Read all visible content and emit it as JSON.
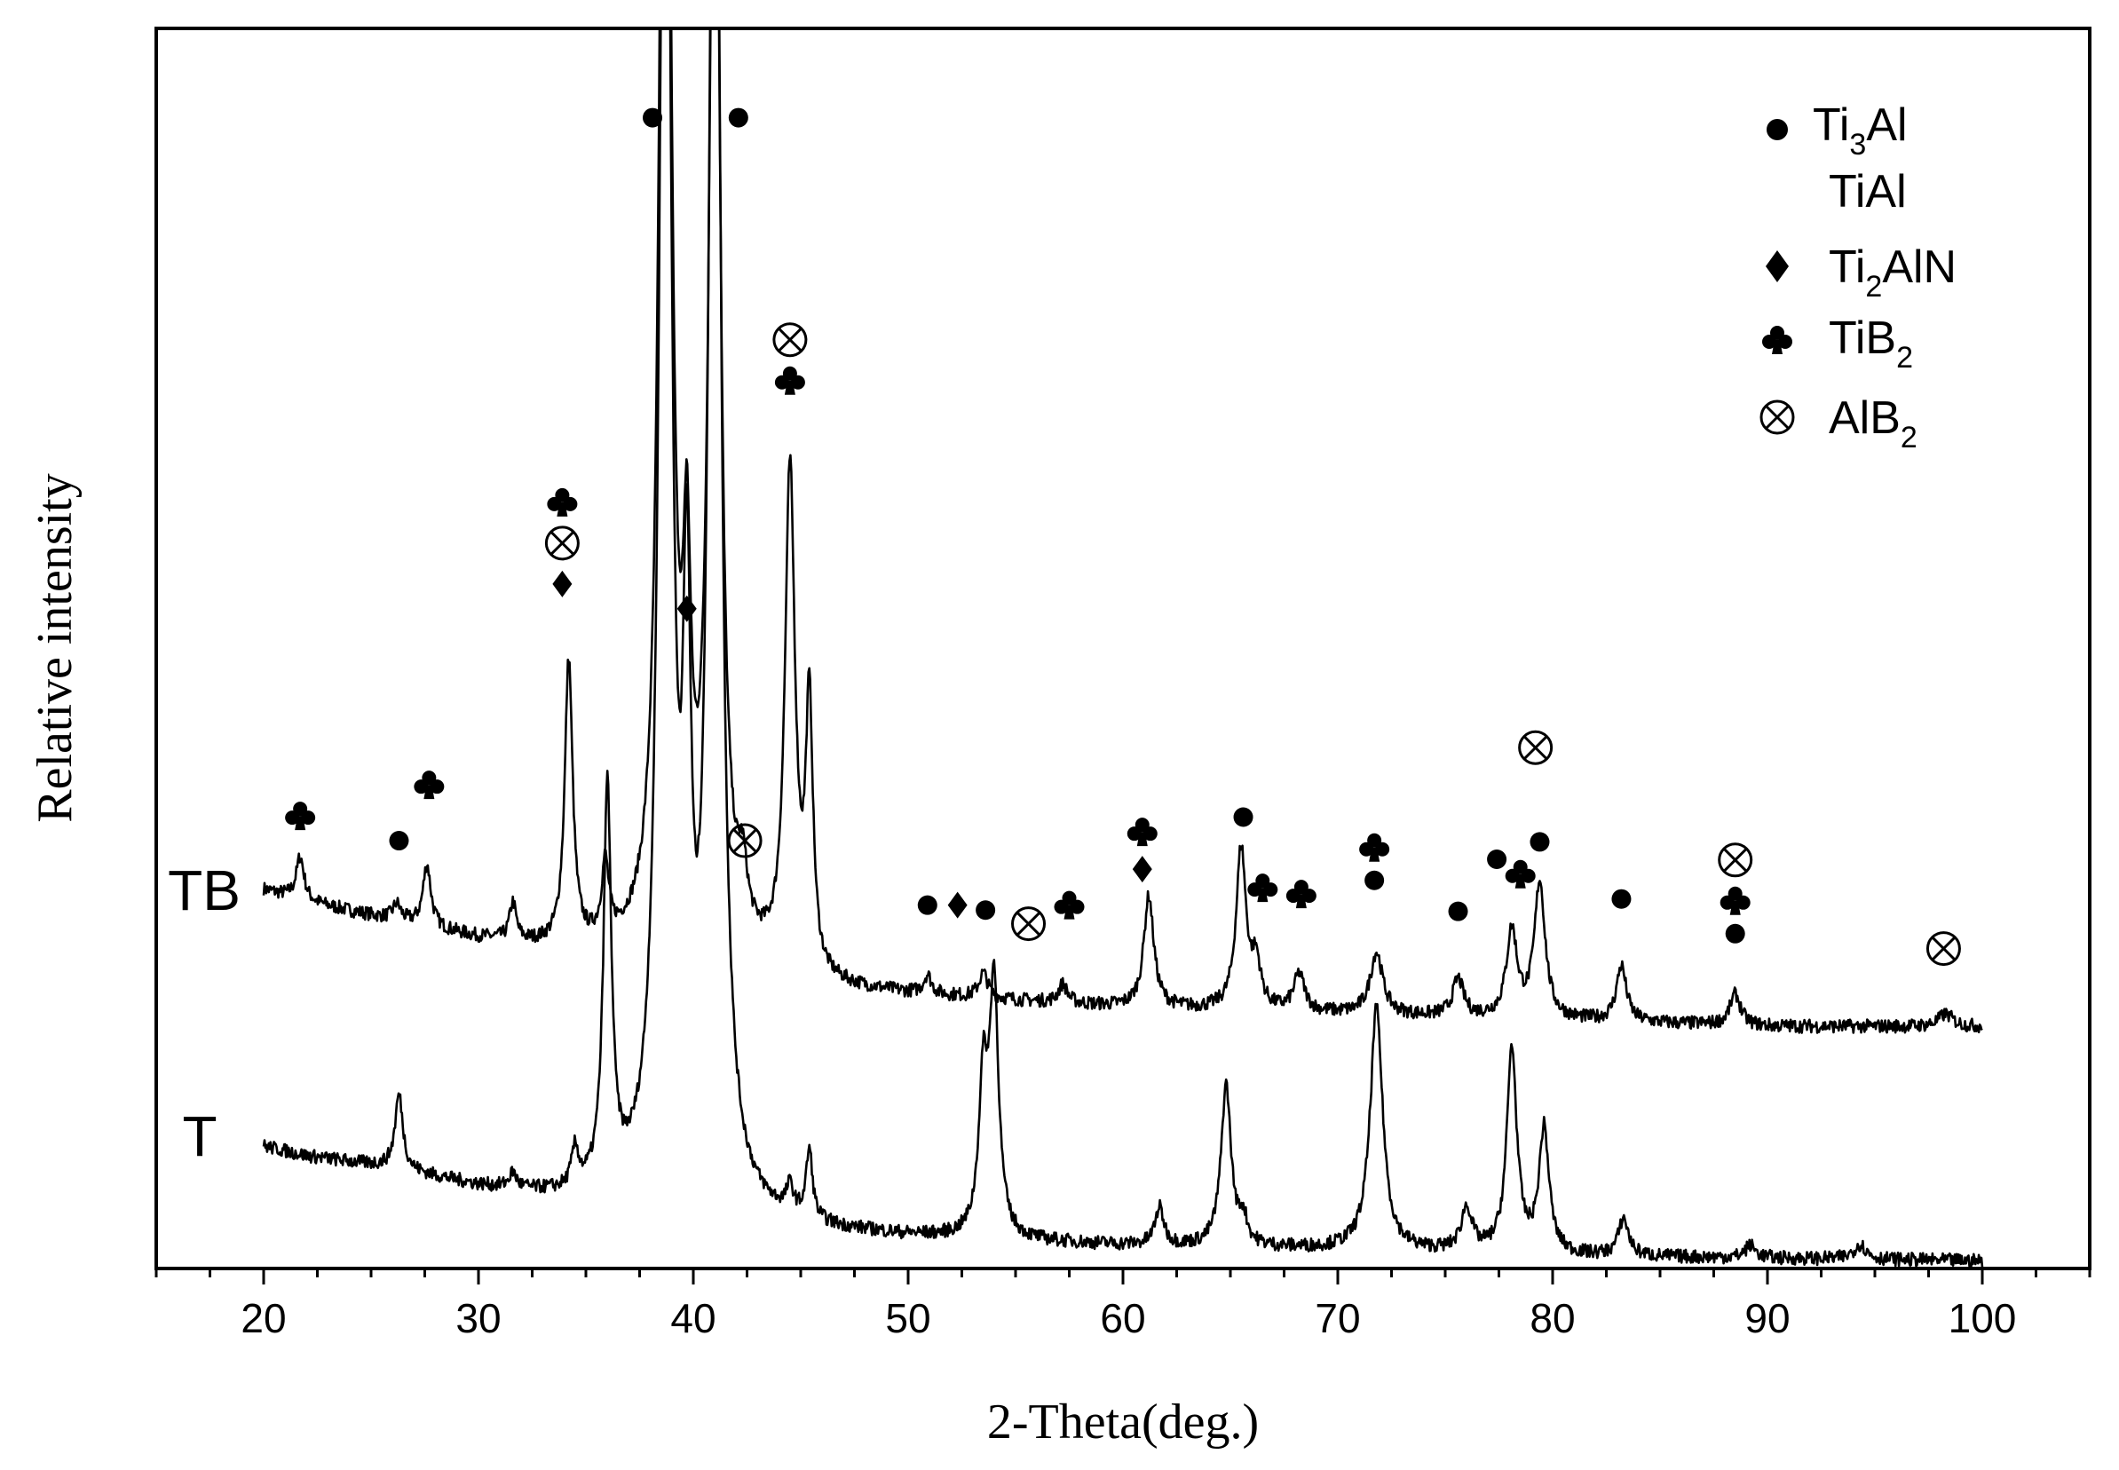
{
  "chart_data": {
    "type": "line",
    "xlabel": "2-Theta(deg.)",
    "ylabel": "Relative intensity",
    "xlim": [
      15,
      105
    ],
    "ylim": [
      0,
      100
    ],
    "x_ticks": [
      20,
      30,
      40,
      50,
      60,
      70,
      80,
      90,
      100
    ],
    "grid": false,
    "legend_position": "top-right",
    "legend": [
      {
        "marker": "dot",
        "label": "Ti",
        "sub": "3",
        "label2": "Al"
      },
      {
        "marker": "none",
        "label": "TiAl",
        "sub": "",
        "label2": ""
      },
      {
        "marker": "diamond",
        "label": "Ti",
        "sub": "2",
        "label2": "AlN"
      },
      {
        "marker": "club",
        "label": "TiB",
        "sub": "2",
        "label2": ""
      },
      {
        "marker": "otimes",
        "label": "AlB",
        "sub": "2",
        "label2": ""
      }
    ],
    "series": [
      {
        "name": "TB",
        "baseline": [
          [
            20,
            30.5
          ],
          [
            22,
            29.5
          ],
          [
            26,
            28
          ],
          [
            30,
            26.5
          ],
          [
            34,
            25.5
          ],
          [
            38,
            25
          ],
          [
            43,
            24
          ],
          [
            46,
            22.5
          ],
          [
            50,
            22
          ],
          [
            60,
            21
          ],
          [
            70,
            20.5
          ],
          [
            80,
            20
          ],
          [
            90,
            19.5
          ],
          [
            100,
            19.5
          ]
        ],
        "peaks": [
          [
            21.7,
            3.5,
            0.22
          ],
          [
            26.2,
            1.3,
            0.22
          ],
          [
            27.6,
            5.0,
            0.22
          ],
          [
            31.6,
            3.0,
            0.18
          ],
          [
            34.2,
            23.0,
            0.22
          ],
          [
            35.9,
            6.0,
            0.2
          ],
          [
            38.7,
            140,
            0.28
          ],
          [
            39.7,
            25.0,
            0.22
          ],
          [
            41.0,
            110,
            0.28
          ],
          [
            42.3,
            4.5,
            0.25
          ],
          [
            44.5,
            40.0,
            0.28
          ],
          [
            45.4,
            21.0,
            0.2
          ],
          [
            50.9,
            1.5,
            0.22
          ],
          [
            53.5,
            2.0,
            0.25
          ],
          [
            57.2,
            1.5,
            0.25
          ],
          [
            61.2,
            9.0,
            0.28
          ],
          [
            65.5,
            13.0,
            0.28
          ],
          [
            66.2,
            3.5,
            0.25
          ],
          [
            68.2,
            3.0,
            0.3
          ],
          [
            71.8,
            5.0,
            0.35
          ],
          [
            75.6,
            3.0,
            0.3
          ],
          [
            78.1,
            7.0,
            0.3
          ],
          [
            79.4,
            11.0,
            0.3
          ],
          [
            83.2,
            4.5,
            0.28
          ],
          [
            88.5,
            2.5,
            0.3
          ],
          [
            98.3,
            1.0,
            0.4
          ]
        ]
      },
      {
        "name": "T",
        "baseline": [
          [
            20,
            9.8
          ],
          [
            22,
            9.0
          ],
          [
            26,
            8.0
          ],
          [
            30,
            6.5
          ],
          [
            34,
            5.5
          ],
          [
            38,
            5.2
          ],
          [
            42,
            4.0
          ],
          [
            46,
            3.0
          ],
          [
            50,
            2.5
          ],
          [
            60,
            1.8
          ],
          [
            70,
            1.5
          ],
          [
            80,
            1.0
          ],
          [
            90,
            0.8
          ],
          [
            100,
            0.6
          ]
        ],
        "peaks": [
          [
            26.3,
            6.0,
            0.22
          ],
          [
            31.6,
            1.2,
            0.2
          ],
          [
            34.5,
            3.0,
            0.2
          ],
          [
            36.0,
            32.0,
            0.22
          ],
          [
            38.7,
            140,
            0.3
          ],
          [
            39.7,
            40.0,
            0.22
          ],
          [
            41.0,
            140,
            0.3
          ],
          [
            44.5,
            2.0,
            0.2
          ],
          [
            45.4,
            5.5,
            0.18
          ],
          [
            53.5,
            12.0,
            0.25
          ],
          [
            54.0,
            20.0,
            0.25
          ],
          [
            61.7,
            3.0,
            0.25
          ],
          [
            64.8,
            13.0,
            0.28
          ],
          [
            65.6,
            2.0,
            0.22
          ],
          [
            71.8,
            19.5,
            0.35
          ],
          [
            76.0,
            3.5,
            0.3
          ],
          [
            78.1,
            16.5,
            0.28
          ],
          [
            79.6,
            10.0,
            0.28
          ],
          [
            83.3,
            3.0,
            0.28
          ],
          [
            89.2,
            1.0,
            0.3
          ],
          [
            94.3,
            1.2,
            0.35
          ]
        ]
      }
    ],
    "annotations": [
      {
        "x": 21.7,
        "y": 36.5,
        "symbols": [
          "club"
        ]
      },
      {
        "x": 26.3,
        "y": 34.5,
        "symbols": [
          "dot"
        ]
      },
      {
        "x": 27.7,
        "y": 39.0,
        "symbols": [
          "club"
        ]
      },
      {
        "x": 33.9,
        "y": 55.2,
        "symbols": [
          "diamond",
          "otimes",
          "club"
        ]
      },
      {
        "x": 38.1,
        "y": 92.8,
        "symbols": [
          "dot"
        ]
      },
      {
        "x": 39.7,
        "y": 53.2,
        "symbols": [
          "diamond"
        ]
      },
      {
        "x": 42.1,
        "y": 92.8,
        "symbols": [
          "dot"
        ]
      },
      {
        "x": 42.4,
        "y": 34.5,
        "symbols": [
          "otimes"
        ]
      },
      {
        "x": 44.5,
        "y": 71.6,
        "symbols": [
          "club",
          "otimes"
        ]
      },
      {
        "x": 50.9,
        "y": 29.3,
        "symbols": [
          "dot"
        ]
      },
      {
        "x": 52.3,
        "y": 29.3,
        "symbols": [
          "diamond"
        ]
      },
      {
        "x": 53.6,
        "y": 28.9,
        "symbols": [
          "dot"
        ]
      },
      {
        "x": 55.6,
        "y": 27.8,
        "symbols": [
          "otimes"
        ]
      },
      {
        "x": 57.5,
        "y": 29.3,
        "symbols": [
          "club"
        ]
      },
      {
        "x": 60.9,
        "y": 32.2,
        "symbols": [
          "diamond",
          "club"
        ]
      },
      {
        "x": 65.6,
        "y": 36.4,
        "symbols": [
          "dot"
        ]
      },
      {
        "x": 66.5,
        "y": 30.7,
        "symbols": [
          "club"
        ]
      },
      {
        "x": 68.3,
        "y": 30.2,
        "symbols": [
          "club"
        ]
      },
      {
        "x": 71.7,
        "y": 31.3,
        "symbols": [
          "dot",
          "club"
        ]
      },
      {
        "x": 75.6,
        "y": 28.8,
        "symbols": [
          "dot"
        ]
      },
      {
        "x": 77.4,
        "y": 33.0,
        "symbols": [
          "dot"
        ]
      },
      {
        "x": 78.5,
        "y": 31.8,
        "symbols": [
          "club"
        ]
      },
      {
        "x": 79.4,
        "y": 34.4,
        "symbols": [
          "dot"
        ]
      },
      {
        "x": 79.2,
        "y": 42.0,
        "symbols": [
          "otimes"
        ]
      },
      {
        "x": 83.2,
        "y": 29.8,
        "symbols": [
          "dot"
        ]
      },
      {
        "x": 88.5,
        "y": 27.0,
        "symbols": [
          "dot",
          "club",
          "otimes"
        ]
      },
      {
        "x": 98.2,
        "y": 25.8,
        "symbols": [
          "otimes"
        ]
      }
    ]
  }
}
